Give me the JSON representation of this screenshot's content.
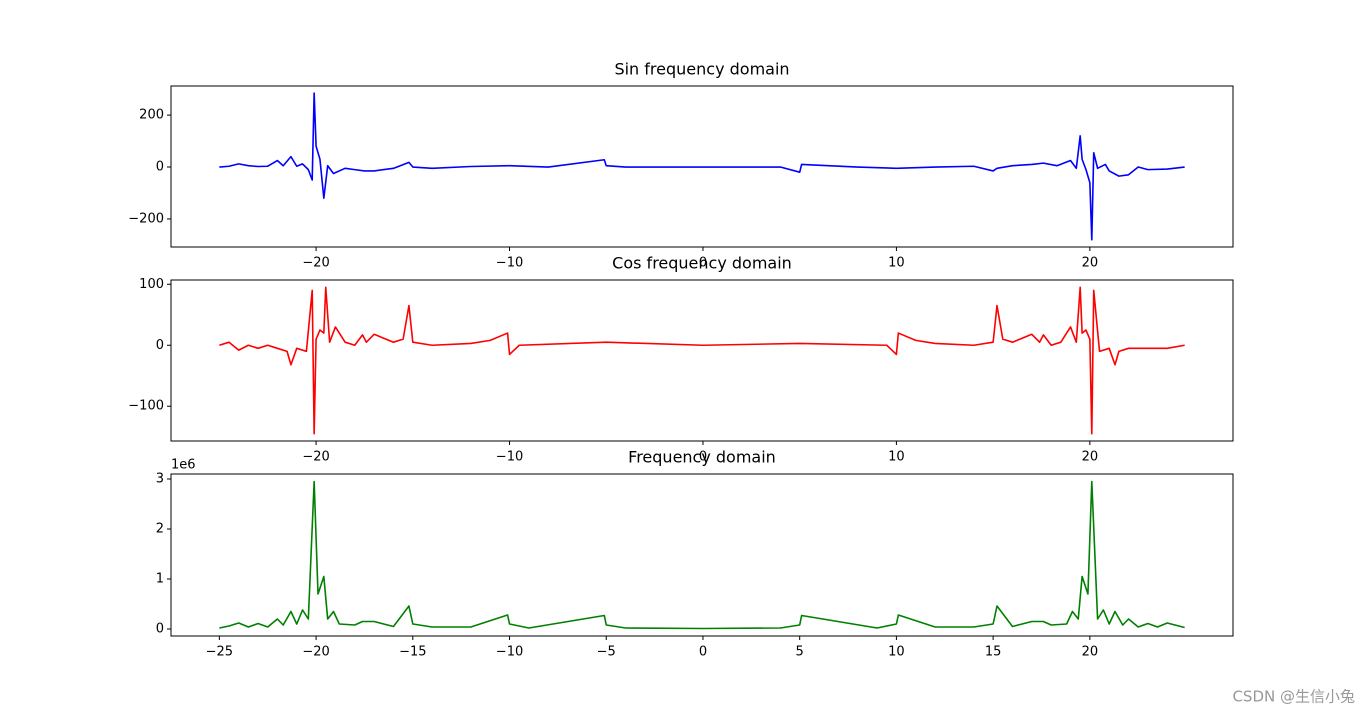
{
  "chart_data": [
    {
      "type": "line",
      "title": "Sin frequency domain",
      "x": [
        -25,
        -24.5,
        -24,
        -23.5,
        -23,
        -22.5,
        -22,
        -21.7,
        -21.3,
        -21,
        -20.7,
        -20.4,
        -20.2,
        -20.1,
        -20,
        -19.8,
        -19.6,
        -19.4,
        -19.1,
        -18.5,
        -18,
        -17.5,
        -17,
        -16,
        -15.2,
        -15,
        -14,
        -12,
        -10,
        -8,
        -5.1,
        -5,
        -4,
        0,
        4,
        5,
        5.1,
        8,
        10,
        12,
        14,
        15,
        15.2,
        16,
        17,
        17.6,
        18.3,
        19,
        19.3,
        19.5,
        19.6,
        19.8,
        20,
        20.1,
        20.2,
        20.4,
        20.8,
        21,
        21.5,
        22,
        22.5,
        23,
        24,
        24.9
      ],
      "series": [
        {
          "color": "#0000ff",
          "values": [
            0,
            3,
            12,
            5,
            2,
            3,
            25,
            5,
            40,
            3,
            12,
            -10,
            -50,
            285,
            80,
            30,
            -120,
            5,
            -25,
            -5,
            -10,
            -15,
            -15,
            -5,
            18,
            0,
            -5,
            2,
            5,
            0,
            28,
            5,
            0,
            0,
            0,
            -20,
            10,
            0,
            -5,
            0,
            3,
            -15,
            -5,
            5,
            10,
            15,
            5,
            25,
            -5,
            120,
            30,
            -10,
            -60,
            -280,
            55,
            -5,
            10,
            -15,
            -35,
            -30,
            0,
            -10,
            -8,
            0
          ]
        }
      ],
      "xlim": [
        -27.5,
        27.4
      ],
      "ylim": [
        -308,
        312
      ],
      "xticks": [
        {
          "value": -20,
          "label": "−20"
        },
        {
          "value": -10,
          "label": "−10"
        },
        0,
        10,
        20
      ],
      "yticks": [
        {
          "value": -200,
          "label": "−200"
        },
        0,
        200
      ]
    },
    {
      "type": "line",
      "title": "Cos frequency domain",
      "x": [
        -25,
        -24.5,
        -24,
        -23.5,
        -23,
        -22.5,
        -22,
        -21.5,
        -21.3,
        -21,
        -20.5,
        -20.2,
        -20.1,
        -20,
        -19.8,
        -19.6,
        -19.5,
        -19.3,
        -19,
        -18.5,
        -18,
        -17.6,
        -17.4,
        -17,
        -16,
        -15.5,
        -15.2,
        -15,
        -14,
        -12,
        -11,
        -10.1,
        -10,
        -9.5,
        -5,
        0,
        5,
        9.5,
        10,
        10.1,
        11,
        12,
        14,
        15,
        15.2,
        15.5,
        16,
        17,
        17.4,
        17.6,
        18,
        18.5,
        19,
        19.3,
        19.5,
        19.6,
        19.8,
        20,
        20.1,
        20.2,
        20.5,
        21,
        21.3,
        21.5,
        22,
        23,
        24,
        24.9
      ],
      "series": [
        {
          "color": "#ff0000",
          "values": [
            0,
            5,
            -8,
            0,
            -5,
            0,
            -5,
            -10,
            -32,
            -5,
            -10,
            90,
            -145,
            10,
            25,
            20,
            95,
            5,
            30,
            5,
            0,
            17,
            5,
            18,
            5,
            10,
            65,
            5,
            0,
            3,
            8,
            20,
            -15,
            0,
            5,
            0,
            3,
            0,
            -15,
            20,
            8,
            3,
            0,
            5,
            65,
            10,
            5,
            18,
            5,
            17,
            0,
            5,
            30,
            5,
            95,
            20,
            25,
            10,
            -145,
            90,
            -10,
            -5,
            -32,
            -10,
            -5,
            -5,
            -5,
            0
          ]
        }
      ],
      "xlim": [
        -27.5,
        27.4
      ],
      "ylim": [
        -157,
        107
      ],
      "xticks": [
        {
          "value": -20,
          "label": "−20"
        },
        {
          "value": -10,
          "label": "−10"
        },
        0,
        10,
        20
      ],
      "yticks": [
        {
          "value": -100,
          "label": "−100"
        },
        0,
        100
      ]
    },
    {
      "type": "line",
      "title": "Frequency domain",
      "y_offset_text": "1e6",
      "x": [
        -25,
        -24.5,
        -24,
        -23.5,
        -23,
        -22.5,
        -22,
        -21.7,
        -21.3,
        -21,
        -20.7,
        -20.4,
        -20.1,
        -19.9,
        -19.6,
        -19.4,
        -19.1,
        -18.8,
        -18,
        -17.6,
        -17,
        -16,
        -15.2,
        -15,
        -14,
        -12,
        -10.1,
        -10,
        -9,
        -5.1,
        -5,
        -4,
        0,
        4,
        5,
        5.1,
        9,
        10,
        10.1,
        12,
        14,
        15,
        15.2,
        16,
        17,
        17.6,
        18,
        18.8,
        19.1,
        19.4,
        19.6,
        19.9,
        20.1,
        20.4,
        20.7,
        21,
        21.3,
        21.7,
        22,
        22.5,
        23,
        23.5,
        24,
        24.9
      ],
      "series": [
        {
          "color": "#008000",
          "values": [
            20000,
            60000,
            120000,
            40000,
            110000,
            40000,
            200000,
            80000,
            350000,
            100000,
            380000,
            200000,
            2950000,
            700000,
            1050000,
            200000,
            350000,
            100000,
            80000,
            150000,
            150000,
            50000,
            460000,
            100000,
            40000,
            40000,
            280000,
            100000,
            20000,
            270000,
            80000,
            20000,
            10000,
            20000,
            80000,
            270000,
            20000,
            100000,
            280000,
            40000,
            40000,
            100000,
            460000,
            50000,
            150000,
            150000,
            80000,
            100000,
            350000,
            200000,
            1050000,
            700000,
            2950000,
            200000,
            380000,
            100000,
            350000,
            80000,
            200000,
            40000,
            110000,
            40000,
            120000,
            30000
          ]
        }
      ],
      "xlim": [
        -27.5,
        27.4
      ],
      "ylim": [
        -140000,
        3100000
      ],
      "xticks": [
        {
          "value": -25,
          "label": "−25"
        },
        {
          "value": -20,
          "label": "−20"
        },
        {
          "value": -15,
          "label": "−15"
        },
        {
          "value": -10,
          "label": "−10"
        },
        {
          "value": -5,
          "label": "−5"
        },
        0,
        5,
        10,
        15,
        20
      ],
      "yticks": [
        0,
        {
          "value": 1000000,
          "label": "1"
        },
        {
          "value": 2000000,
          "label": "2"
        },
        {
          "value": 3000000,
          "label": "3"
        }
      ]
    }
  ],
  "watermark": "CSDN @生信小兔"
}
